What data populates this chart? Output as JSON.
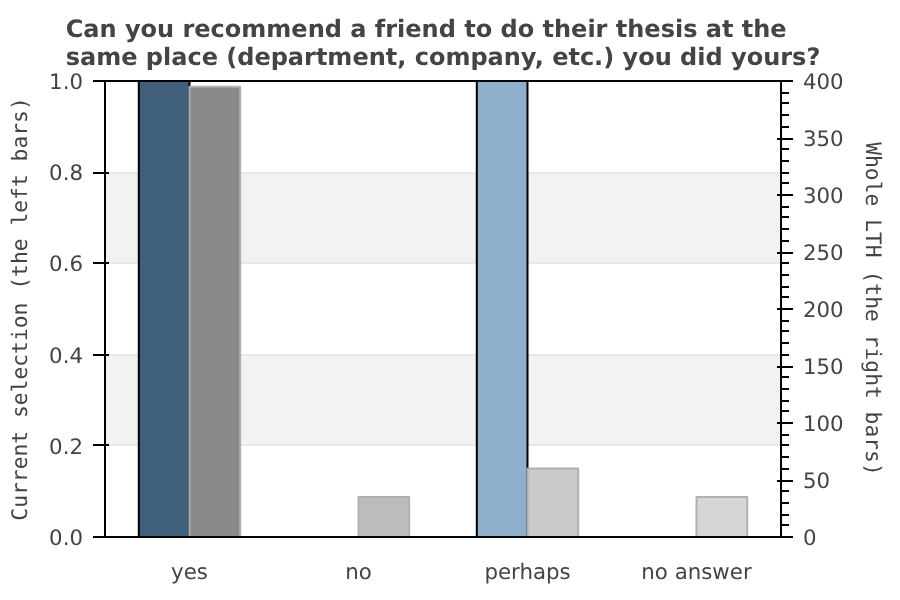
{
  "chart_data": {
    "type": "bar",
    "title": "Can you recommend a friend to do their thesis at the same place (department, company, etc.) you did yours?",
    "categories": [
      "yes",
      "no",
      "perhaps",
      "no answer"
    ],
    "ylabel": "Current selection (the left bars)",
    "y2label": "Whole LTH (the right bars)",
    "ylim": [
      0,
      1
    ],
    "yticks": [
      {
        "value": 0,
        "label": "0.0"
      },
      {
        "value": 0.2,
        "label": "0.2"
      },
      {
        "value": 0.4,
        "label": "0.4"
      },
      {
        "value": 0.6,
        "label": "0.6"
      },
      {
        "value": 0.8,
        "label": "0.8"
      },
      {
        "value": 1,
        "label": "1.0"
      }
    ],
    "y2lim": [
      0,
      400
    ],
    "y2ticks": [
      0,
      50,
      100,
      150,
      200,
      250,
      300,
      350,
      400
    ],
    "series": [
      {
        "colors": [
          "#3f5f7c",
          "#3f5f7c",
          "#8fb0cc",
          "#8fb0cc"
        ],
        "values": [
          1,
          0,
          1,
          0
        ]
      },
      {
        "axis": "y2",
        "colors": [
          "#8a8a8a",
          "#bcbcbc",
          "#c9c9c9",
          "#d6d6d6"
        ],
        "values": [
          395,
          35,
          60,
          35
        ]
      }
    ],
    "grid": "y"
  }
}
